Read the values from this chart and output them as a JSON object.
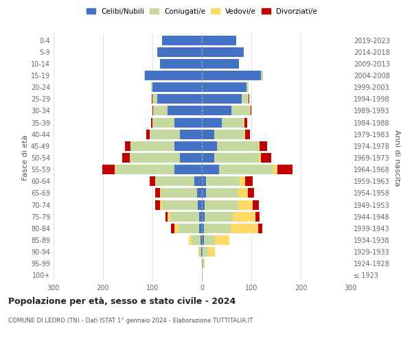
{
  "age_groups": [
    "100+",
    "95-99",
    "90-94",
    "85-89",
    "80-84",
    "75-79",
    "70-74",
    "65-69",
    "60-64",
    "55-59",
    "50-54",
    "45-49",
    "40-44",
    "35-39",
    "30-34",
    "25-29",
    "20-24",
    "15-19",
    "10-14",
    "5-9",
    "0-4"
  ],
  "birth_years": [
    "≤ 1923",
    "1924-1928",
    "1929-1933",
    "1934-1938",
    "1939-1943",
    "1944-1948",
    "1949-1953",
    "1954-1958",
    "1959-1963",
    "1964-1968",
    "1969-1973",
    "1974-1978",
    "1979-1983",
    "1984-1988",
    "1989-1993",
    "1994-1998",
    "1999-2003",
    "2004-2008",
    "2009-2013",
    "2014-2018",
    "2019-2023"
  ],
  "maschi": {
    "celibe": [
      0,
      0,
      1,
      3,
      5,
      6,
      8,
      10,
      15,
      55,
      45,
      55,
      45,
      55,
      70,
      90,
      100,
      115,
      85,
      90,
      80
    ],
    "coniugato": [
      0,
      0,
      4,
      18,
      42,
      58,
      72,
      72,
      78,
      120,
      100,
      90,
      60,
      45,
      28,
      10,
      3,
      2,
      0,
      0,
      0
    ],
    "vedovo": [
      0,
      0,
      2,
      5,
      8,
      5,
      5,
      3,
      2,
      2,
      1,
      0,
      0,
      0,
      0,
      0,
      0,
      0,
      0,
      0,
      0
    ],
    "divorziato": [
      0,
      0,
      0,
      0,
      8,
      5,
      10,
      10,
      10,
      25,
      15,
      10,
      8,
      3,
      2,
      1,
      0,
      0,
      0,
      0,
      0
    ]
  },
  "femmine": {
    "nubile": [
      0,
      1,
      2,
      4,
      4,
      5,
      5,
      8,
      8,
      35,
      25,
      30,
      25,
      40,
      60,
      80,
      90,
      120,
      75,
      85,
      70
    ],
    "coniugata": [
      1,
      3,
      10,
      22,
      55,
      58,
      68,
      65,
      68,
      110,
      90,
      85,
      60,
      45,
      38,
      15,
      5,
      3,
      0,
      0,
      0
    ],
    "vedova": [
      0,
      2,
      15,
      30,
      55,
      45,
      30,
      20,
      12,
      8,
      5,
      2,
      2,
      1,
      0,
      0,
      0,
      0,
      0,
      0,
      0
    ],
    "divorziata": [
      0,
      0,
      0,
      0,
      8,
      8,
      12,
      12,
      15,
      30,
      20,
      15,
      10,
      5,
      2,
      1,
      0,
      0,
      0,
      0,
      0
    ]
  },
  "colors": {
    "celibe": "#4472c4",
    "coniugato": "#c5d9a0",
    "vedovo": "#ffd966",
    "divorziato": "#c00000"
  },
  "xlim": 300,
  "title": "Popolazione per età, sesso e stato civile - 2024",
  "subtitle": "COMUNE DI LEDRO (TN) - Dati ISTAT 1° gennaio 2024 - Elaborazione TUTTITALIA.IT",
  "ylabel_left": "Fasce di età",
  "ylabel_right": "Anni di nascita",
  "legend_labels": [
    "Celibi/Nubili",
    "Coniugati/e",
    "Vedovi/e",
    "Divorziati/e"
  ],
  "background_color": "#ffffff",
  "grid_color": "#d0d0d0"
}
